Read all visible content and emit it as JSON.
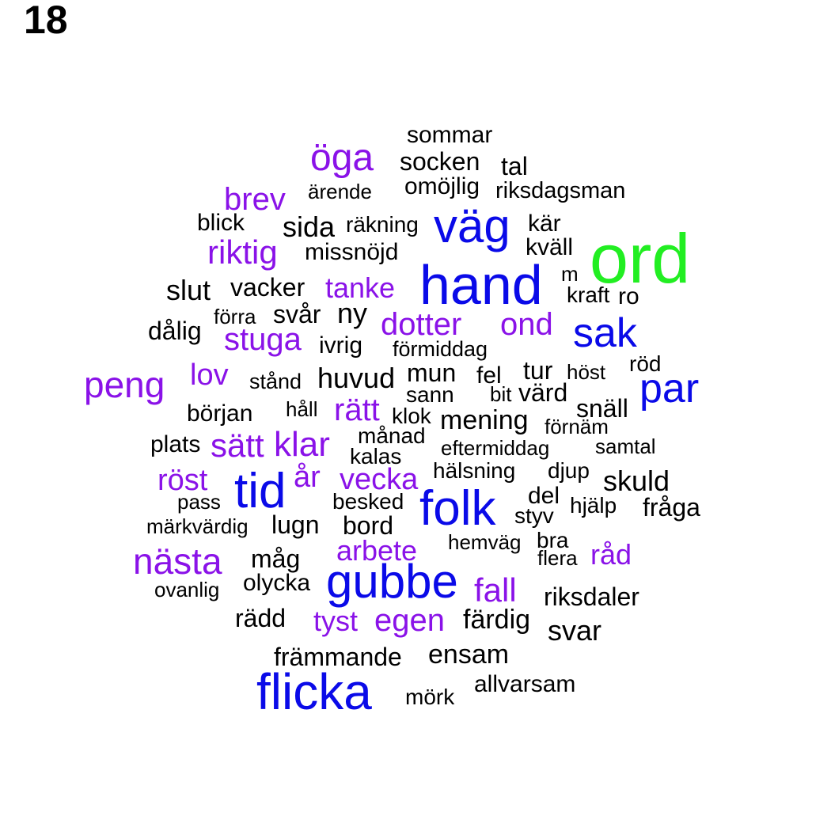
{
  "page_number": "18",
  "colors": {
    "largest": "#22ee22",
    "large": "#0a0ae8",
    "medium": "#8a12e8",
    "small": "#000000"
  },
  "words": [
    {
      "text": "ord",
      "tier": "largest"
    },
    {
      "text": "hand",
      "tier": "large"
    },
    {
      "text": "väg",
      "tier": "large"
    },
    {
      "text": "sak",
      "tier": "large"
    },
    {
      "text": "par",
      "tier": "large"
    },
    {
      "text": "folk",
      "tier": "large"
    },
    {
      "text": "tid",
      "tier": "large"
    },
    {
      "text": "gubbe",
      "tier": "large"
    },
    {
      "text": "flicka",
      "tier": "large"
    },
    {
      "text": "öga",
      "tier": "medium"
    },
    {
      "text": "brev",
      "tier": "medium"
    },
    {
      "text": "riktig",
      "tier": "medium"
    },
    {
      "text": "tanke",
      "tier": "medium"
    },
    {
      "text": "dotter",
      "tier": "medium"
    },
    {
      "text": "ond",
      "tier": "medium"
    },
    {
      "text": "stuga",
      "tier": "medium"
    },
    {
      "text": "peng",
      "tier": "medium"
    },
    {
      "text": "lov",
      "tier": "medium"
    },
    {
      "text": "rätt",
      "tier": "medium"
    },
    {
      "text": "sätt",
      "tier": "medium"
    },
    {
      "text": "klar",
      "tier": "medium"
    },
    {
      "text": "röst",
      "tier": "medium"
    },
    {
      "text": "år",
      "tier": "medium"
    },
    {
      "text": "vecka",
      "tier": "medium"
    },
    {
      "text": "nästa",
      "tier": "medium"
    },
    {
      "text": "arbete",
      "tier": "medium"
    },
    {
      "text": "fall",
      "tier": "medium"
    },
    {
      "text": "råd",
      "tier": "medium"
    },
    {
      "text": "tyst",
      "tier": "medium"
    },
    {
      "text": "egen",
      "tier": "medium"
    },
    {
      "text": "sommar",
      "tier": "small"
    },
    {
      "text": "socken",
      "tier": "small"
    },
    {
      "text": "tal",
      "tier": "small"
    },
    {
      "text": "ärende",
      "tier": "small"
    },
    {
      "text": "omöjlig",
      "tier": "small"
    },
    {
      "text": "riksdagsman",
      "tier": "small"
    },
    {
      "text": "blick",
      "tier": "small"
    },
    {
      "text": "sida",
      "tier": "small"
    },
    {
      "text": "räkning",
      "tier": "small"
    },
    {
      "text": "kär",
      "tier": "small"
    },
    {
      "text": "missnöjd",
      "tier": "small"
    },
    {
      "text": "kväll",
      "tier": "small"
    },
    {
      "text": "m",
      "tier": "small"
    },
    {
      "text": "slut",
      "tier": "small"
    },
    {
      "text": "vacker",
      "tier": "small"
    },
    {
      "text": "kraft",
      "tier": "small"
    },
    {
      "text": "ro",
      "tier": "small"
    },
    {
      "text": "förra",
      "tier": "small"
    },
    {
      "text": "svår",
      "tier": "small"
    },
    {
      "text": "ny",
      "tier": "small"
    },
    {
      "text": "dålig",
      "tier": "small"
    },
    {
      "text": "ivrig",
      "tier": "small"
    },
    {
      "text": "förmiddag",
      "tier": "small"
    },
    {
      "text": "mun",
      "tier": "small"
    },
    {
      "text": "tur",
      "tier": "small"
    },
    {
      "text": "höst",
      "tier": "small"
    },
    {
      "text": "röd",
      "tier": "small"
    },
    {
      "text": "stånd",
      "tier": "small"
    },
    {
      "text": "huvud",
      "tier": "small"
    },
    {
      "text": "fel",
      "tier": "small"
    },
    {
      "text": "sann",
      "tier": "small"
    },
    {
      "text": "bit",
      "tier": "small"
    },
    {
      "text": "värd",
      "tier": "small"
    },
    {
      "text": "början",
      "tier": "small"
    },
    {
      "text": "håll",
      "tier": "small"
    },
    {
      "text": "klok",
      "tier": "small"
    },
    {
      "text": "mening",
      "tier": "small"
    },
    {
      "text": "snäll",
      "tier": "small"
    },
    {
      "text": "förnäm",
      "tier": "small"
    },
    {
      "text": "plats",
      "tier": "small"
    },
    {
      "text": "månad",
      "tier": "small"
    },
    {
      "text": "eftermiddag",
      "tier": "small"
    },
    {
      "text": "samtal",
      "tier": "small"
    },
    {
      "text": "kalas",
      "tier": "small"
    },
    {
      "text": "hälsning",
      "tier": "small"
    },
    {
      "text": "djup",
      "tier": "small"
    },
    {
      "text": "skuld",
      "tier": "small"
    },
    {
      "text": "pass",
      "tier": "small"
    },
    {
      "text": "besked",
      "tier": "small"
    },
    {
      "text": "del",
      "tier": "small"
    },
    {
      "text": "hjälp",
      "tier": "small"
    },
    {
      "text": "fråga",
      "tier": "small"
    },
    {
      "text": "märkvärdig",
      "tier": "small"
    },
    {
      "text": "lugn",
      "tier": "small"
    },
    {
      "text": "bord",
      "tier": "small"
    },
    {
      "text": "styv",
      "tier": "small"
    },
    {
      "text": "hemväg",
      "tier": "small"
    },
    {
      "text": "bra",
      "tier": "small"
    },
    {
      "text": "flera",
      "tier": "small"
    },
    {
      "text": "måg",
      "tier": "small"
    },
    {
      "text": "ovanlig",
      "tier": "small"
    },
    {
      "text": "olycka",
      "tier": "small"
    },
    {
      "text": "riksdaler",
      "tier": "small"
    },
    {
      "text": "rädd",
      "tier": "small"
    },
    {
      "text": "färdig",
      "tier": "small"
    },
    {
      "text": "svar",
      "tier": "small"
    },
    {
      "text": "främmande",
      "tier": "small"
    },
    {
      "text": "ensam",
      "tier": "small"
    },
    {
      "text": "allvarsam",
      "tier": "small"
    },
    {
      "text": "mörk",
      "tier": "small"
    }
  ]
}
